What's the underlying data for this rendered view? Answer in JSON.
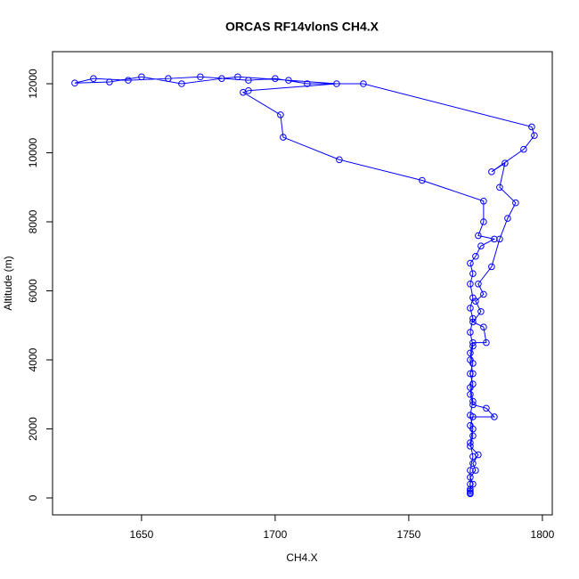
{
  "chart_data": {
    "type": "line",
    "title": "ORCAS RF14vlonS CH4.X",
    "x_label": "CH4.X",
    "y_label": "Altitude (m)",
    "color": "#0000ff",
    "markers": true,
    "x": [
      1773,
      1773,
      1774,
      1773,
      1775,
      1774,
      1776,
      1773,
      1774,
      1773,
      1774,
      1782,
      1779,
      1774,
      1773,
      1774,
      1773,
      1774,
      1773,
      1774,
      1779,
      1778,
      1774,
      1777,
      1775,
      1778,
      1776,
      1781,
      1784,
      1787,
      1790,
      1784,
      1786,
      1781,
      1793,
      1797,
      1796,
      1733,
      1712,
      1700,
      1690,
      1672,
      1660,
      1645,
      1632,
      1625,
      1638,
      1650,
      1665,
      1680,
      1686,
      1705,
      1723,
      1690,
      1688,
      1702,
      1703,
      1724,
      1755,
      1778,
      1778,
      1776,
      1782,
      1777,
      1775,
      1773,
      1774,
      1773,
      1774,
      1773,
      1774,
      1773,
      1774,
      1773,
      1774,
      1773,
      1774,
      1773,
      1774,
      1773,
      1774,
      1773,
      1773,
      1773,
      1773
    ],
    "values": [
      150,
      250,
      400,
      600,
      800,
      1000,
      1250,
      1500,
      1800,
      2100,
      2350,
      2350,
      2600,
      2700,
      3000,
      3300,
      3600,
      3900,
      4200,
      4500,
      4500,
      4950,
      5100,
      5400,
      5700,
      5900,
      6200,
      6700,
      7500,
      8100,
      8550,
      9000,
      9700,
      9450,
      10100,
      10500,
      10750,
      12000,
      12000,
      12150,
      12100,
      12200,
      12150,
      12100,
      12150,
      12020,
      12050,
      12200,
      12000,
      12150,
      12200,
      12100,
      12000,
      11800,
      11750,
      11100,
      10450,
      9800,
      9200,
      8600,
      8000,
      7600,
      7500,
      7300,
      7000,
      6800,
      6500,
      6200,
      5800,
      5500,
      5200,
      4800,
      4400,
      4000,
      3600,
      3200,
      2800,
      2400,
      2000,
      1600,
      1200,
      800,
      400,
      200,
      120
    ],
    "xlim": [
      1616.7,
      1803.7
    ],
    "ylim": [
      -490,
      12929
    ],
    "xticks": [
      1650,
      1700,
      1750,
      1800
    ],
    "yticks": [
      0,
      2000,
      4000,
      6000,
      8000,
      10000,
      12000
    ]
  }
}
